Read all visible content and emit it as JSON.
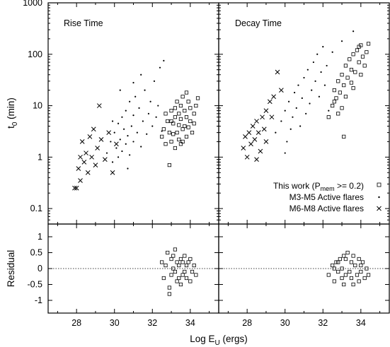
{
  "figure": {
    "x_axis_label": "Log E",
    "x_axis_label_sub": "U",
    "x_axis_label_tail": " (ergs)",
    "y_axis_label_top": "t",
    "y_axis_label_top_sub": "0",
    "y_axis_label_top_tail": " (min)",
    "y_axis_label_bottom": "Residual",
    "panel_titles": [
      "Rise Time",
      "Decay Time"
    ],
    "x_tick_labels": [
      "28",
      "30",
      "32",
      "34"
    ],
    "y_top_tick_labels": [
      "0.1",
      "1",
      "10",
      "100",
      "1000"
    ],
    "y_bottom_tick_labels": [
      "-1",
      "-0.5",
      "0",
      "0.5",
      "1"
    ],
    "legend": [
      {
        "label": "This work (P",
        "sub": "mem",
        "tail": " >= 0.2)",
        "marker": "square"
      },
      {
        "label": "M3-M5 Active flares",
        "sub": "",
        "tail": "",
        "marker": "dot"
      },
      {
        "label": "M6-M8 Active flares",
        "sub": "",
        "tail": "",
        "marker": "x"
      }
    ]
  },
  "chart_data": [
    {
      "type": "scatter",
      "title": "Rise Time",
      "xlabel": "Log E_U (ergs)",
      "ylabel": "t_0 (min)",
      "xlim": [
        26.5,
        35.5
      ],
      "ylim": [
        0.05,
        1000
      ],
      "yscale": "log",
      "series": [
        {
          "name": "This work (P_mem >= 0.2)",
          "marker": "square",
          "points": [
            [
              32.5,
              2.5
            ],
            [
              32.6,
              3.5
            ],
            [
              32.7,
              1.8
            ],
            [
              32.8,
              5.0
            ],
            [
              32.9,
              3.0
            ],
            [
              33.0,
              8.0
            ],
            [
              33.0,
              2.0
            ],
            [
              33.1,
              4.5
            ],
            [
              33.2,
              6.0
            ],
            [
              33.2,
              1.5
            ],
            [
              33.3,
              12.0
            ],
            [
              33.3,
              3.0
            ],
            [
              33.4,
              7.0
            ],
            [
              33.4,
              2.2
            ],
            [
              33.5,
              5.5
            ],
            [
              33.5,
              10.0
            ],
            [
              33.6,
              3.5
            ],
            [
              33.6,
              15.0
            ],
            [
              33.7,
              4.0
            ],
            [
              33.7,
              8.0
            ],
            [
              33.8,
              2.5
            ],
            [
              33.8,
              6.0
            ],
            [
              33.9,
              12.0
            ],
            [
              34.0,
              5.0
            ],
            [
              34.0,
              9.0
            ],
            [
              34.1,
              3.0
            ],
            [
              34.2,
              7.0
            ],
            [
              34.3,
              10.0
            ],
            [
              32.9,
              0.7
            ],
            [
              33.1,
              2.8
            ],
            [
              33.2,
              9.0
            ],
            [
              33.4,
              4.2
            ],
            [
              33.6,
              2.0
            ],
            [
              33.9,
              3.8
            ],
            [
              34.4,
              14.0
            ],
            [
              32.7,
              7.0
            ],
            [
              33.0,
              5.0
            ],
            [
              33.5,
              1.8
            ],
            [
              33.8,
              18.0
            ],
            [
              34.2,
              4.5
            ]
          ]
        },
        {
          "name": "M3-M5 Active flares",
          "marker": "dot",
          "points": [
            [
              29.6,
              1.2
            ],
            [
              29.8,
              2.0
            ],
            [
              29.9,
              0.8
            ],
            [
              30.0,
              3.0
            ],
            [
              30.1,
              1.5
            ],
            [
              30.2,
              4.5
            ],
            [
              30.2,
              1.0
            ],
            [
              30.3,
              2.2
            ],
            [
              30.4,
              6.0
            ],
            [
              30.4,
              1.3
            ],
            [
              30.5,
              3.5
            ],
            [
              30.6,
              8.0
            ],
            [
              30.6,
              1.8
            ],
            [
              30.7,
              2.6
            ],
            [
              30.8,
              12.0
            ],
            [
              30.8,
              1.1
            ],
            [
              30.9,
              4.0
            ],
            [
              31.0,
              6.5
            ],
            [
              31.0,
              2.0
            ],
            [
              31.1,
              15.0
            ],
            [
              31.2,
              3.0
            ],
            [
              31.3,
              9.0
            ],
            [
              31.4,
              1.6
            ],
            [
              31.5,
              5.0
            ],
            [
              31.6,
              20.0
            ],
            [
              31.7,
              2.8
            ],
            [
              31.8,
              7.0
            ],
            [
              31.9,
              12.0
            ],
            [
              32.0,
              4.0
            ],
            [
              32.1,
              30.0
            ],
            [
              32.2,
              6.0
            ],
            [
              32.3,
              10.0
            ],
            [
              32.4,
              55.0
            ],
            [
              32.5,
              3.2
            ],
            [
              32.6,
              75.0
            ],
            [
              31.4,
              40.0
            ],
            [
              30.3,
              20.0
            ],
            [
              31.0,
              28.0
            ],
            [
              29.9,
              5.0
            ],
            [
              30.7,
              0.6
            ]
          ]
        },
        {
          "name": "M6-M8 Active flares",
          "marker": "x",
          "points": [
            [
              27.9,
              0.25
            ],
            [
              28.0,
              0.25
            ],
            [
              28.1,
              0.6
            ],
            [
              28.2,
              1.0
            ],
            [
              28.2,
              0.35
            ],
            [
              28.3,
              2.0
            ],
            [
              28.4,
              0.8
            ],
            [
              28.5,
              1.2
            ],
            [
              28.6,
              0.5
            ],
            [
              28.7,
              2.5
            ],
            [
              28.8,
              1.0
            ],
            [
              28.9,
              3.5
            ],
            [
              29.0,
              0.7
            ],
            [
              29.1,
              1.5
            ],
            [
              29.2,
              10.0
            ],
            [
              29.3,
              2.2
            ],
            [
              29.5,
              0.9
            ],
            [
              29.7,
              3.0
            ],
            [
              29.9,
              0.5
            ],
            [
              30.1,
              1.8
            ]
          ]
        }
      ]
    },
    {
      "type": "scatter",
      "title": "Decay Time",
      "xlabel": "Log E_U (ergs)",
      "ylabel": "t_0 (min)",
      "xlim": [
        26.5,
        35.5
      ],
      "ylim": [
        0.05,
        1000
      ],
      "yscale": "log",
      "series": [
        {
          "name": "This work (P_mem >= 0.2)",
          "marker": "square",
          "points": [
            [
              32.3,
              6.0
            ],
            [
              32.5,
              10.0
            ],
            [
              32.6,
              20.0
            ],
            [
              32.7,
              14.0
            ],
            [
              32.8,
              30.0
            ],
            [
              32.9,
              18.0
            ],
            [
              33.0,
              40.0
            ],
            [
              33.0,
              9.0
            ],
            [
              33.1,
              25.0
            ],
            [
              33.2,
              60.0
            ],
            [
              33.3,
              35.0
            ],
            [
              33.4,
              80.0
            ],
            [
              33.5,
              50.0
            ],
            [
              33.6,
              100.0
            ],
            [
              33.7,
              45.0
            ],
            [
              33.8,
              120.0
            ],
            [
              33.9,
              70.0
            ],
            [
              34.0,
              150.0
            ],
            [
              34.1,
              90.0
            ],
            [
              34.2,
              60.0
            ],
            [
              34.3,
              110.0
            ],
            [
              34.4,
              160.0
            ],
            [
              33.2,
              15.0
            ],
            [
              33.5,
              28.0
            ],
            [
              32.8,
              7.0
            ],
            [
              33.1,
              2.5
            ],
            [
              33.6,
              22.0
            ],
            [
              34.0,
              40.0
            ],
            [
              32.6,
              12.0
            ],
            [
              33.9,
              140.0
            ]
          ]
        },
        {
          "name": "M3-M5 Active flares",
          "marker": "dot",
          "points": [
            [
              29.5,
              3.0
            ],
            [
              29.8,
              5.0
            ],
            [
              30.0,
              8.0
            ],
            [
              30.1,
              2.0
            ],
            [
              30.2,
              12.0
            ],
            [
              30.3,
              3.5
            ],
            [
              30.4,
              6.0
            ],
            [
              30.5,
              18.0
            ],
            [
              30.6,
              9.0
            ],
            [
              30.7,
              25.0
            ],
            [
              30.8,
              4.0
            ],
            [
              30.9,
              14.0
            ],
            [
              31.0,
              35.0
            ],
            [
              31.1,
              7.0
            ],
            [
              31.2,
              50.0
            ],
            [
              31.3,
              11.0
            ],
            [
              31.4,
              20.0
            ],
            [
              31.5,
              70.0
            ],
            [
              31.6,
              30.0
            ],
            [
              31.7,
              100.0
            ],
            [
              31.8,
              15.0
            ],
            [
              31.9,
              45.0
            ],
            [
              32.0,
              140.0
            ],
            [
              32.1,
              25.0
            ],
            [
              32.2,
              60.0
            ],
            [
              32.3,
              8.0
            ],
            [
              32.5,
              110.0
            ],
            [
              33.0,
              180.0
            ],
            [
              33.6,
              280.0
            ],
            [
              30.0,
              1.2
            ]
          ]
        },
        {
          "name": "M6-M8 Active flares",
          "marker": "x",
          "points": [
            [
              27.8,
              1.5
            ],
            [
              27.9,
              2.5
            ],
            [
              28.0,
              1.0
            ],
            [
              28.1,
              3.0
            ],
            [
              28.2,
              1.8
            ],
            [
              28.3,
              4.0
            ],
            [
              28.4,
              2.2
            ],
            [
              28.5,
              5.0
            ],
            [
              28.6,
              3.0
            ],
            [
              28.7,
              1.3
            ],
            [
              28.8,
              6.0
            ],
            [
              28.9,
              3.5
            ],
            [
              29.0,
              8.0
            ],
            [
              29.2,
              12.0
            ],
            [
              29.4,
              15.0
            ],
            [
              29.6,
              45.0
            ],
            [
              29.8,
              20.0
            ],
            [
              28.5,
              0.9
            ],
            [
              29.0,
              2.0
            ],
            [
              29.3,
              6.0
            ]
          ]
        }
      ]
    },
    {
      "type": "scatter",
      "title": "",
      "xlabel": "Log E_U (ergs)",
      "ylabel": "Residual",
      "xlim": [
        26.5,
        35.5
      ],
      "ylim": [
        -1.4,
        1.4
      ],
      "reference_line": 0,
      "series": [
        {
          "name": "Rise Time residual",
          "marker": "square",
          "points": [
            [
              32.5,
              0.2
            ],
            [
              32.6,
              -0.3
            ],
            [
              32.7,
              0.1
            ],
            [
              32.8,
              0.5
            ],
            [
              32.9,
              -0.6
            ],
            [
              33.0,
              0.3
            ],
            [
              33.0,
              -0.2
            ],
            [
              33.1,
              0.4
            ],
            [
              33.2,
              -0.1
            ],
            [
              33.2,
              0.6
            ],
            [
              33.3,
              -0.4
            ],
            [
              33.3,
              0.2
            ],
            [
              33.4,
              -0.3
            ],
            [
              33.4,
              0.1
            ],
            [
              33.5,
              0.3
            ],
            [
              33.5,
              -0.5
            ],
            [
              33.6,
              0.2
            ],
            [
              33.6,
              -0.2
            ],
            [
              33.7,
              0.4
            ],
            [
              33.7,
              -0.1
            ],
            [
              33.8,
              0.1
            ],
            [
              33.8,
              -0.3
            ],
            [
              33.9,
              0.2
            ],
            [
              34.0,
              -0.4
            ],
            [
              34.0,
              0.3
            ],
            [
              34.1,
              -0.1
            ],
            [
              34.2,
              0.1
            ],
            [
              34.3,
              -0.2
            ],
            [
              32.9,
              -0.8
            ],
            [
              33.1,
              0.0
            ]
          ]
        },
        {
          "name": "Decay Time residual",
          "marker": "square",
          "points": [
            [
              32.3,
              -0.2
            ],
            [
              32.5,
              0.1
            ],
            [
              32.6,
              -0.4
            ],
            [
              32.7,
              0.2
            ],
            [
              32.8,
              -0.1
            ],
            [
              32.9,
              0.3
            ],
            [
              33.0,
              -0.3
            ],
            [
              33.0,
              0.0
            ],
            [
              33.1,
              0.4
            ],
            [
              33.2,
              -0.2
            ],
            [
              33.3,
              0.5
            ],
            [
              33.4,
              -0.1
            ],
            [
              33.5,
              0.2
            ],
            [
              33.6,
              -0.5
            ],
            [
              33.7,
              0.1
            ],
            [
              33.8,
              -0.2
            ],
            [
              33.9,
              0.3
            ],
            [
              34.0,
              -0.1
            ],
            [
              34.1,
              0.2
            ],
            [
              34.2,
              -0.3
            ],
            [
              34.3,
              0.0
            ],
            [
              34.4,
              -0.2
            ],
            [
              33.2,
              0.3
            ],
            [
              33.5,
              -0.3
            ],
            [
              32.8,
              0.2
            ],
            [
              33.1,
              -0.5
            ],
            [
              33.6,
              0.4
            ],
            [
              34.0,
              0.1
            ],
            [
              32.6,
              0.0
            ],
            [
              33.9,
              -0.4
            ]
          ]
        }
      ]
    }
  ]
}
